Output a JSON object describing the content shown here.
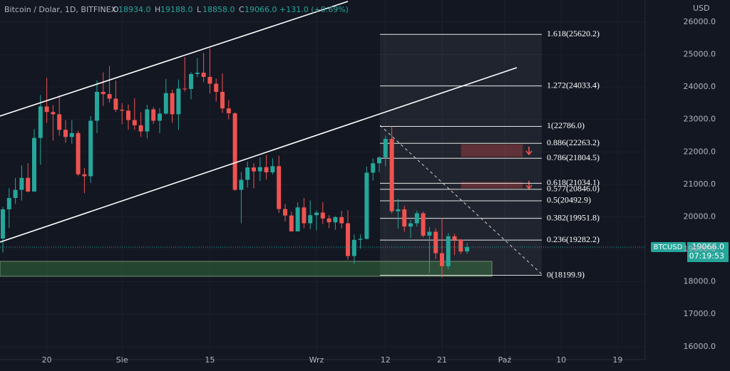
{
  "chart_data": {
    "type": "candlestick",
    "title": "Bitcoin / Dolar, 1D, BITFINEX",
    "ohlc_legend": [
      {
        "k": "O",
        "v": "18934.0"
      },
      {
        "k": "H",
        "v": "19188.0"
      },
      {
        "k": "L",
        "v": "18858.0"
      },
      {
        "k": "C",
        "v": "19066.0"
      }
    ],
    "change": "+131.0 (+0.69%)",
    "y_unit": "USD",
    "symbol": "BTCUSD",
    "last_price": {
      "value": 19066,
      "label": "19066.0"
    },
    "countdown": "07:19:53",
    "up_color": "#26a69a",
    "down_color": "#ef5350",
    "ylim": [
      15600,
      26680
    ],
    "yticks": [
      {
        "value": 16000,
        "label": "16000.0"
      },
      {
        "value": 17000,
        "label": "17000.0"
      },
      {
        "value": 18000,
        "label": "18000.0"
      },
      {
        "value": 19000,
        "label": "19000.0"
      },
      {
        "value": 20000,
        "label": "20000.0"
      },
      {
        "value": 21000,
        "label": "21000.0"
      },
      {
        "value": 22000,
        "label": "22000.0"
      },
      {
        "value": 23000,
        "label": "23000.0"
      },
      {
        "value": 24000,
        "label": "24000.0"
      },
      {
        "value": 25000,
        "label": "25000.0"
      },
      {
        "value": 26000,
        "label": "26000.0"
      }
    ],
    "categories": [
      null,
      null,
      null,
      null,
      null,
      null,
      null,
      "20",
      null,
      null,
      null,
      null,
      null,
      null,
      null,
      null,
      null,
      null,
      null,
      "Sie",
      null,
      null,
      null,
      null,
      null,
      null,
      null,
      null,
      null,
      null,
      null,
      null,
      null,
      "15",
      null,
      null,
      null,
      null,
      null,
      null,
      null,
      null,
      null,
      null,
      null,
      null,
      null,
      null,
      null,
      null,
      "Wrz",
      null,
      null,
      null,
      null,
      null,
      null,
      null,
      null,
      null,
      null,
      "12",
      null,
      null,
      null,
      null,
      null,
      null,
      null,
      null,
      "21",
      null,
      null,
      null,
      null,
      null,
      null,
      null,
      null,
      null,
      "Paź",
      null,
      null,
      null,
      null,
      null,
      null,
      null,
      null,
      "10",
      null,
      null,
      null,
      null,
      null,
      null,
      null,
      null,
      "19",
      null
    ],
    "open": [
      19330,
      20230,
      20580,
      20830,
      21200,
      20780,
      22430,
      23400,
      23230,
      23160,
      22680,
      22460,
      22580,
      21310,
      21250,
      22960,
      23850,
      23780,
      23640,
      23300,
      23270,
      22980,
      22820,
      22630,
      23310,
      22960,
      23180,
      23810,
      23160,
      23950,
      23940,
      24400,
      24440,
      24310,
      24100,
      23850,
      23340,
      23190,
      20830,
      21140,
      21520,
      21400,
      21530,
      21370,
      21560,
      20240,
      20040,
      19550,
      20290,
      19800,
      20050,
      20130,
      19950,
      19830,
      19990,
      19800,
      18790,
      19290,
      19320,
      21360,
      21650,
      21830,
      22400,
      20170,
      20230,
      19700,
      19800,
      20110,
      19420,
      19540,
      18880,
      18480,
      19400,
      19290,
      18934,
      null,
      null,
      null,
      null,
      null,
      null,
      null,
      null,
      null,
      null,
      null,
      null,
      null,
      null,
      null,
      null,
      null,
      null,
      null,
      null,
      null,
      null,
      null,
      null,
      null
    ],
    "high": [
      20300,
      20880,
      21200,
      21580,
      21650,
      22700,
      23750,
      24280,
      23440,
      23750,
      22980,
      22980,
      22650,
      21500,
      23100,
      24200,
      24450,
      24650,
      24200,
      23500,
      23460,
      23650,
      23220,
      23450,
      23380,
      23350,
      24250,
      23920,
      24230,
      24920,
      24450,
      24890,
      25050,
      25200,
      24260,
      24420,
      23600,
      23220,
      21380,
      21700,
      21650,
      21820,
      21900,
      21800,
      21880,
      20400,
      20160,
      20440,
      20580,
      20500,
      20200,
      20450,
      20050,
      20020,
      20180,
      20200,
      19460,
      19460,
      21550,
      21800,
      21860,
      22500,
      22790,
      20550,
      20340,
      19900,
      20190,
      20160,
      19680,
      19640,
      19960,
      19500,
      19480,
      19330,
      19188,
      null,
      null,
      null,
      null,
      null,
      null,
      null,
      null,
      null,
      null,
      null,
      null,
      null,
      null,
      null,
      null,
      null,
      null,
      null,
      null,
      null,
      null,
      null,
      null,
      null
    ],
    "low": [
      18900,
      19650,
      20400,
      20500,
      20750,
      20770,
      21600,
      22900,
      22350,
      22500,
      22280,
      22250,
      21250,
      20730,
      21050,
      22580,
      23420,
      23520,
      23230,
      22850,
      22680,
      22680,
      22460,
      22420,
      22860,
      22580,
      23150,
      22900,
      22680,
      23860,
      23620,
      24300,
      24150,
      23800,
      23550,
      23200,
      23000,
      20800,
      19800,
      20900,
      20880,
      21100,
      21150,
      21300,
      20120,
      19850,
      19550,
      19550,
      19650,
      19620,
      19580,
      19780,
      19650,
      19600,
      19640,
      18680,
      18550,
      19020,
      19300,
      21120,
      21370,
      21550,
      20100,
      19640,
      19540,
      19350,
      19700,
      19370,
      18270,
      18700,
      18130,
      18380,
      18820,
      18850,
      18858,
      null,
      null,
      null,
      null,
      null,
      null,
      null,
      null,
      null,
      null,
      null,
      null,
      null,
      null,
      null,
      null,
      null,
      null,
      null,
      null,
      null,
      null,
      null,
      null,
      null
    ],
    "close": [
      20230,
      20580,
      20830,
      21200,
      20780,
      22430,
      23400,
      23230,
      23160,
      22680,
      22460,
      22580,
      21310,
      21250,
      22960,
      23850,
      23780,
      23640,
      23300,
      23270,
      22980,
      22820,
      22630,
      23310,
      22960,
      23180,
      23810,
      23160,
      23950,
      23940,
      24400,
      24440,
      24310,
      24100,
      23850,
      23340,
      23190,
      20830,
      21140,
      21520,
      21400,
      21530,
      21370,
      21560,
      20240,
      20040,
      19550,
      20290,
      19800,
      20050,
      20130,
      19950,
      19830,
      19990,
      19800,
      18790,
      19290,
      19320,
      21360,
      21650,
      21830,
      22400,
      20170,
      20230,
      19700,
      19800,
      20110,
      19420,
      19540,
      18880,
      18480,
      19400,
      19290,
      18930,
      19066,
      null,
      null,
      null,
      null,
      null,
      null,
      null,
      null,
      null,
      null,
      null,
      null,
      null,
      null,
      null,
      null,
      null,
      null,
      null,
      null,
      null,
      null,
      null,
      null,
      null
    ],
    "fib": {
      "levels": [
        25620.2,
        24033.4,
        22786.0,
        22263.2,
        21804.5,
        21034.1,
        20846.0,
        20492.9,
        19951.8,
        19282.2,
        18199.9
      ],
      "labels": [
        "1.618(25620.2)",
        "1.272(24033.4)",
        "1(22786.0)",
        "0.886(22263.2)",
        "0.786(21804.5)",
        "0.618(21034.1)",
        "0.577(20846.0)",
        "0.5(20492.9)",
        "0.382(19951.8)",
        "0.236(19282.2)",
        "0(18199.9)"
      ]
    }
  }
}
